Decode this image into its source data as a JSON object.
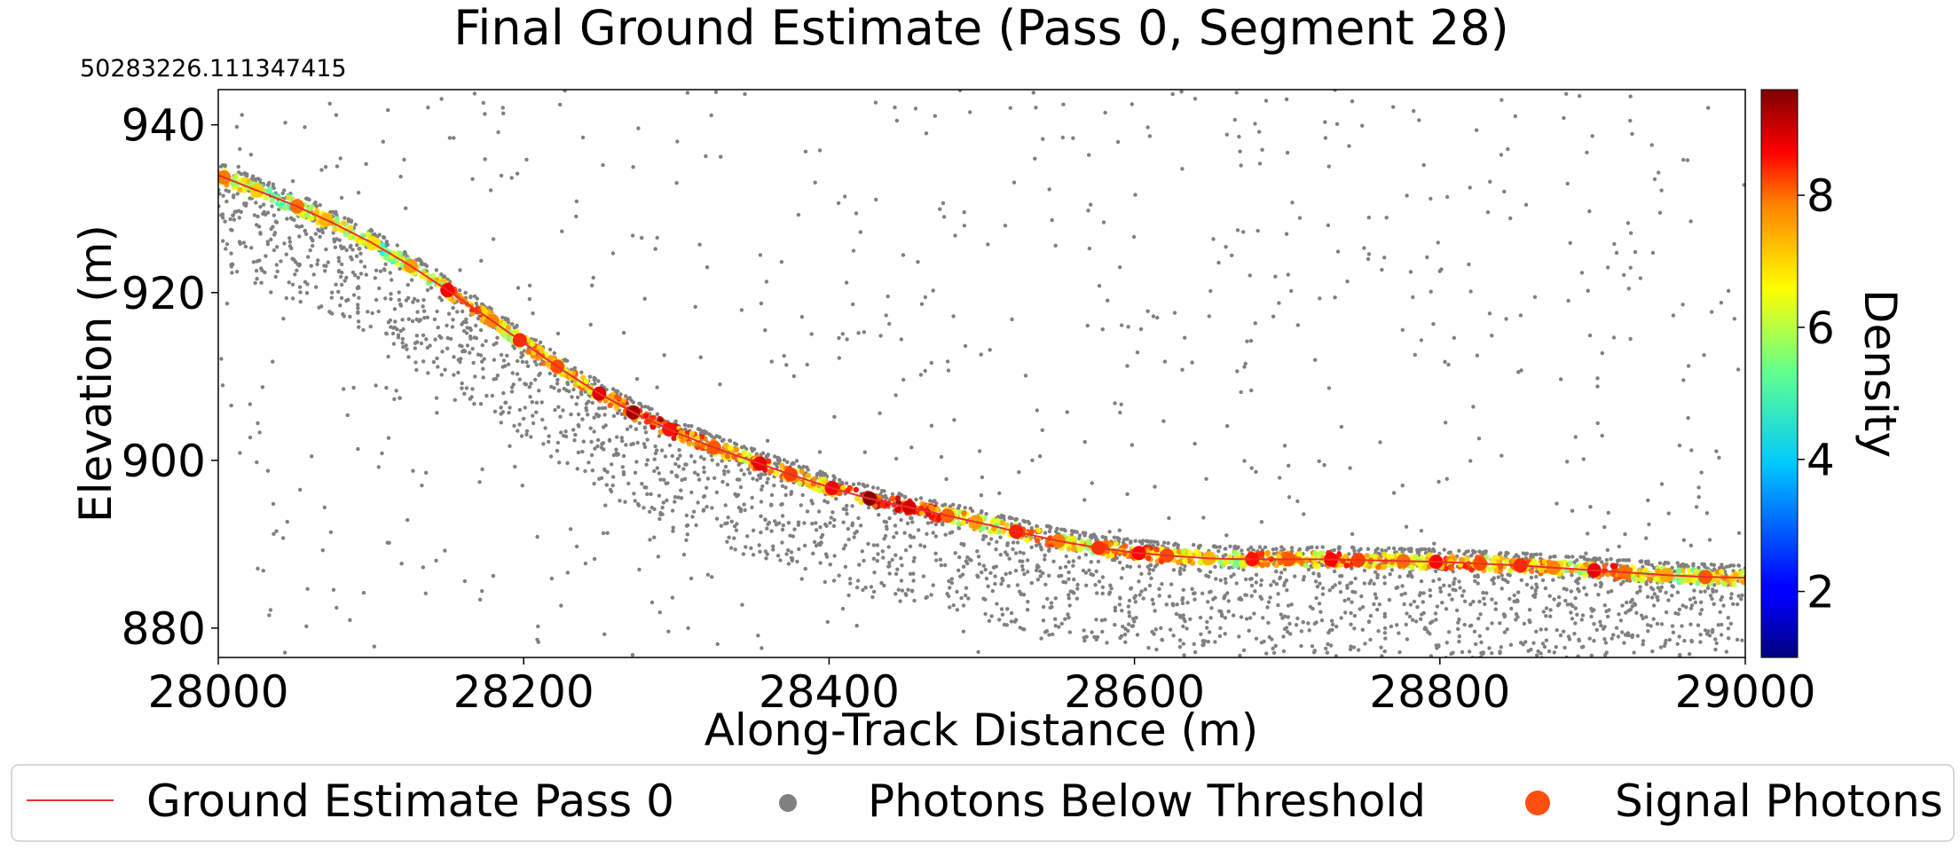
{
  "chart_data": {
    "type": "scatter",
    "title": "Final Ground Estimate (Pass 0, Segment 28)",
    "offset_text": "50283226.111347415",
    "xlabel": "Along-Track Distance (m)",
    "ylabel": "Elevation (m)",
    "xlim": [
      28000,
      29000
    ],
    "ylim": [
      876.5,
      944.2
    ],
    "xticks": [
      28000,
      28200,
      28400,
      28600,
      28800,
      29000
    ],
    "yticks": [
      880,
      900,
      920,
      940
    ],
    "grid": false,
    "colorbar": {
      "label": "Density",
      "range": [
        1.0,
        9.6
      ],
      "ticks": [
        2,
        4,
        6,
        8
      ],
      "colormap": "jet"
    },
    "ground_profile": {
      "x": [
        28000,
        28025,
        28050,
        28075,
        28100,
        28125,
        28150,
        28175,
        28200,
        28225,
        28250,
        28275,
        28300,
        28325,
        28350,
        28375,
        28400,
        28425,
        28450,
        28475,
        28500,
        28525,
        28550,
        28575,
        28600,
        28625,
        28650,
        28675,
        28700,
        28725,
        28750,
        28775,
        28800,
        28825,
        28850,
        28875,
        28900,
        28925,
        28950,
        28975,
        29000
      ],
      "y": [
        934,
        932.2,
        930.4,
        928.3,
        926,
        923.3,
        920.3,
        917.2,
        914,
        910.8,
        907.9,
        905.4,
        903.3,
        901.5,
        899.9,
        898.3,
        896.8,
        895.5,
        894.5,
        893.5,
        892.5,
        891.4,
        890.4,
        889.6,
        889,
        888.6,
        888.3,
        888.2,
        888.2,
        888.2,
        888.1,
        888,
        887.9,
        887.7,
        887.5,
        887.2,
        886.9,
        886.6,
        886.3,
        886.1,
        886
      ]
    },
    "signal_density": [
      7.5,
      6.8,
      7.6,
      7.0,
      6.6,
      7.2,
      8.6,
      7.4,
      8.2,
      7.9,
      8.8,
      9.3,
      8.4,
      7.8,
      8.7,
      8.0,
      8.6,
      9.5,
      8.9,
      7.7,
      7.2,
      8.3,
      7.5,
      8.1,
      8.5,
      7.9,
      7.0,
      8.4,
      7.8,
      8.6,
      8.0,
      7.6,
      8.5,
      7.9,
      8.2,
      7.4,
      8.7,
      7.6,
      7.1,
      7.8,
      8.2
    ],
    "series": [
      {
        "name": "Ground Estimate Pass 0",
        "color": "#e8302a",
        "marker": "line"
      },
      {
        "name": "Photons Below Threshold",
        "color": "#808080",
        "marker": "dot"
      },
      {
        "name": "Signal Photons",
        "color": "#ff5010",
        "marker": "dot"
      }
    ],
    "legend_placement": "bottom"
  }
}
